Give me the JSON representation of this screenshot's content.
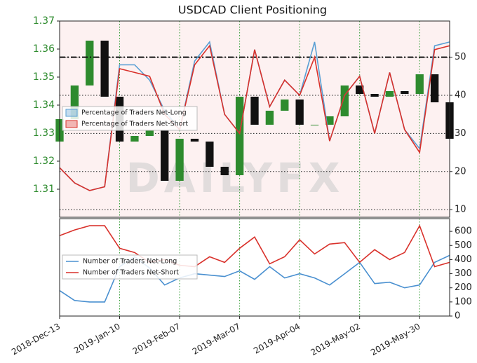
{
  "chart_data": [
    {
      "type": "candlestick",
      "title": "USDCAD Client Positioning",
      "watermark": "DAILYFX",
      "x": [
        "2018-12-13",
        "2018-12-20",
        "2018-12-27",
        "2019-01-03",
        "2019-01-10",
        "2019-01-17",
        "2019-01-24",
        "2019-01-31",
        "2019-02-07",
        "2019-02-14",
        "2019-02-21",
        "2019-02-28",
        "2019-03-07",
        "2019-03-14",
        "2019-03-21",
        "2019-03-28",
        "2019-04-04",
        "2019-04-11",
        "2019-04-18",
        "2019-04-25",
        "2019-05-02",
        "2019-05-09",
        "2019-05-16",
        "2019-05-23",
        "2019-05-30",
        "2019-06-06",
        "2019-06-13"
      ],
      "open": [
        1.327,
        1.335,
        1.347,
        1.363,
        1.343,
        1.327,
        1.329,
        1.331,
        1.313,
        1.328,
        1.327,
        1.318,
        1.315,
        1.343,
        1.333,
        1.338,
        1.342,
        1.333,
        1.333,
        1.336,
        1.347,
        1.344,
        1.343,
        1.345,
        1.344,
        1.351,
        1.341
      ],
      "close": [
        1.335,
        1.347,
        1.363,
        1.343,
        1.327,
        1.329,
        1.331,
        1.313,
        1.328,
        1.327,
        1.318,
        1.315,
        1.343,
        1.333,
        1.338,
        1.342,
        1.333,
        1.333,
        1.336,
        1.347,
        1.344,
        1.343,
        1.345,
        1.344,
        1.351,
        1.341,
        1.328
      ],
      "up_color": "#2e8b2e",
      "down_color": "#111111",
      "xlim": [
        "2018-12-13",
        "2019-06-13"
      ],
      "ylim": [
        1.3,
        1.37
      ],
      "yticks": [
        1.31,
        1.32,
        1.33,
        1.34,
        1.35,
        1.36,
        1.37
      ],
      "y2lim": [
        8,
        59.5
      ],
      "y2ticks": [
        10,
        20,
        30,
        40,
        50
      ],
      "reference_line": 50,
      "series": [
        {
          "name": "Percentage of Traders Net-Long",
          "color": "#5a9fd4",
          "axis": "y2",
          "values": [
            21,
            17,
            15,
            16,
            48,
            48,
            44,
            36,
            31,
            49,
            54,
            35,
            30,
            52,
            37,
            44,
            40,
            54,
            28,
            40,
            45,
            30,
            46,
            31,
            26,
            53,
            54
          ]
        },
        {
          "name": "Percentage of Traders Net-Short",
          "color": "#d9312b",
          "axis": "y2",
          "values": [
            21,
            17,
            15,
            16,
            47,
            46,
            45,
            35,
            31,
            48,
            53,
            35,
            30,
            52,
            37,
            44,
            40,
            50,
            28,
            40,
            45,
            30,
            46,
            31,
            25,
            52,
            53
          ]
        }
      ],
      "legend": "left",
      "grid": true
    },
    {
      "type": "line",
      "x": [
        "2018-12-13",
        "2018-12-20",
        "2018-12-27",
        "2019-01-03",
        "2019-01-10",
        "2019-01-17",
        "2019-01-24",
        "2019-01-31",
        "2019-02-07",
        "2019-02-14",
        "2019-02-21",
        "2019-02-28",
        "2019-03-07",
        "2019-03-14",
        "2019-03-21",
        "2019-03-28",
        "2019-04-04",
        "2019-04-11",
        "2019-04-18",
        "2019-04-25",
        "2019-05-02",
        "2019-05-09",
        "2019-05-16",
        "2019-05-23",
        "2019-05-30",
        "2019-06-06",
        "2019-06-13"
      ],
      "xlim": [
        "2018-12-13",
        "2019-06-13"
      ],
      "xticks": [
        "2018-Dec-13",
        "2019-Jan-10",
        "2019-Feb-07",
        "2019-Mar-07",
        "2019-Apr-04",
        "2019-May-02",
        "2019-May-30"
      ],
      "xtick_dates": [
        "2018-12-13",
        "2019-01-10",
        "2019-02-07",
        "2019-03-07",
        "2019-04-04",
        "2019-05-02",
        "2019-05-30"
      ],
      "y2lim": [
        0,
        690
      ],
      "y2ticks": [
        0,
        100,
        200,
        300,
        400,
        500,
        600
      ],
      "series": [
        {
          "name": "Number of Traders Net-Long",
          "color": "#4a90d0",
          "axis": "y2",
          "values": [
            180,
            110,
            100,
            100,
            350,
            420,
            340,
            220,
            270,
            300,
            290,
            280,
            320,
            260,
            350,
            270,
            300,
            270,
            220,
            300,
            380,
            230,
            240,
            200,
            220,
            380,
            430
          ]
        },
        {
          "name": "Number of Traders Net-Short",
          "color": "#d9312b",
          "axis": "y2",
          "values": [
            570,
            610,
            640,
            640,
            480,
            450,
            380,
            400,
            360,
            350,
            420,
            380,
            480,
            560,
            370,
            420,
            540,
            440,
            510,
            520,
            380,
            470,
            400,
            450,
            640,
            350,
            380
          ]
        }
      ],
      "legend": "left",
      "grid": true
    }
  ]
}
